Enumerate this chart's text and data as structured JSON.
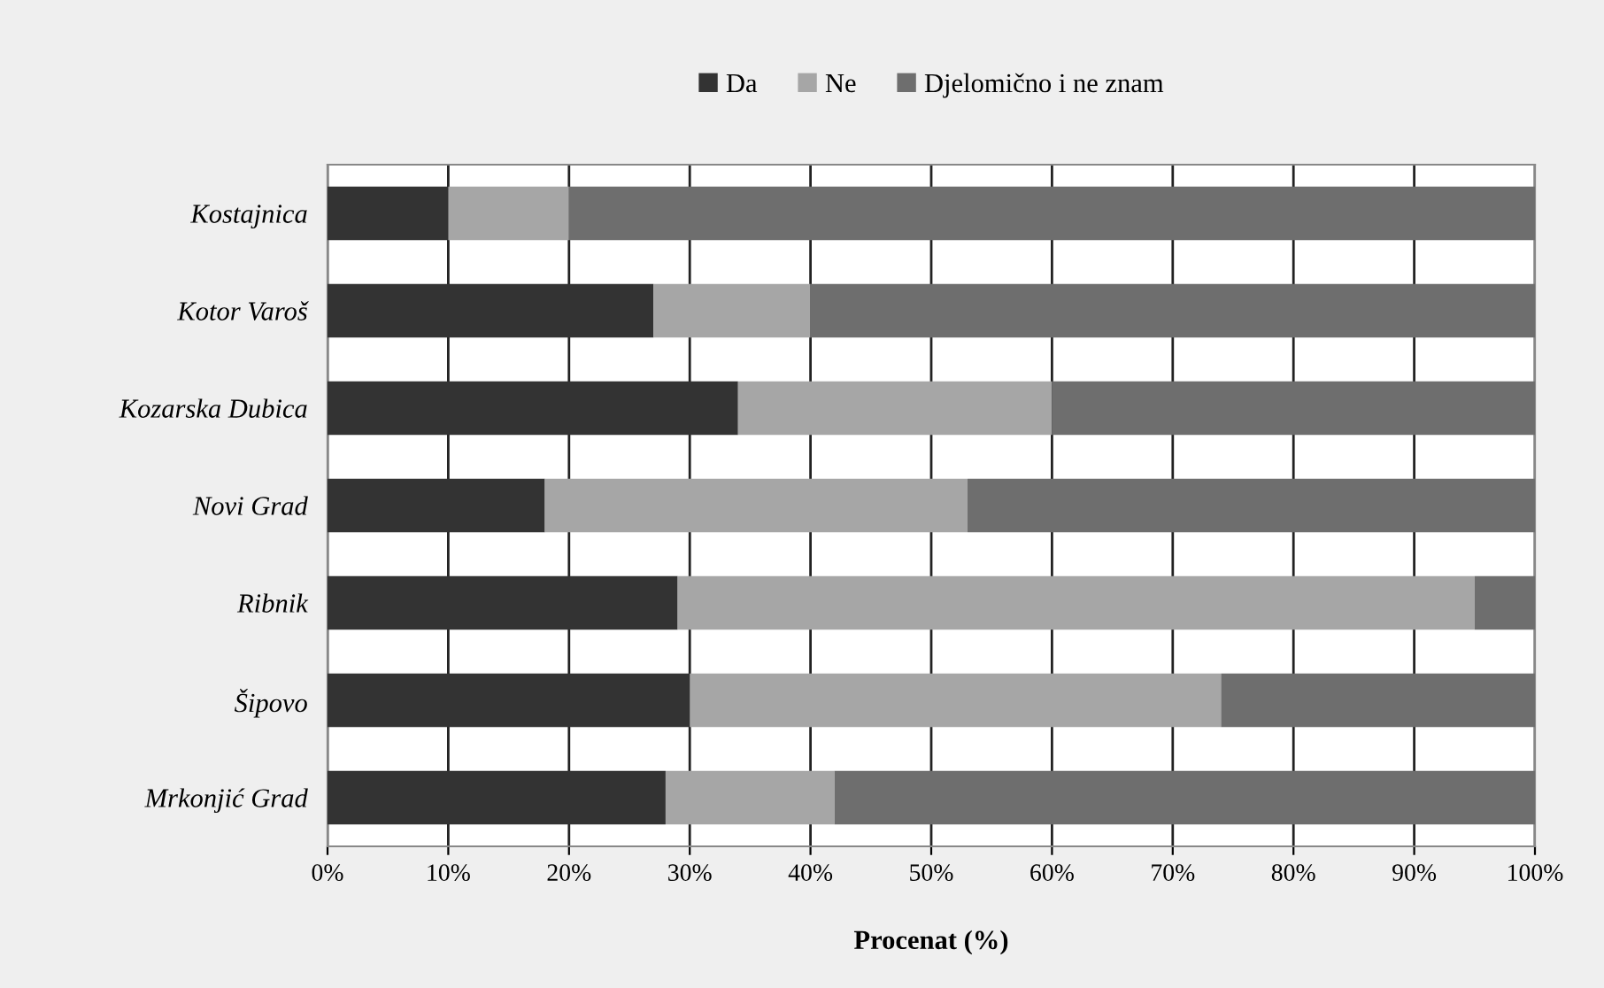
{
  "chart_data": {
    "type": "bar",
    "orientation": "horizontal",
    "stacked": true,
    "xlabel": "Procenat (%)",
    "categories": [
      "Kostajnica",
      "Kotor Varoš",
      "Kozarska Dubica",
      "Novi Grad",
      "Ribnik",
      "Šipovo",
      "Mrkonjić Grad"
    ],
    "series": [
      {
        "name": "Da",
        "color": "#333333",
        "values": [
          10,
          27,
          34,
          18,
          29,
          30,
          28
        ]
      },
      {
        "name": "Ne",
        "color": "#a6a6a6",
        "values": [
          10,
          13,
          26,
          35,
          66,
          44,
          14
        ]
      },
      {
        "name": "Djelomično i ne znam",
        "color": "#6e6e6e",
        "values": [
          80,
          60,
          40,
          47,
          5,
          26,
          58
        ]
      }
    ],
    "xlim": [
      0,
      100
    ],
    "xticks": [
      {
        "value": 0,
        "label": "0%"
      },
      {
        "value": 10,
        "label": "10%"
      },
      {
        "value": 20,
        "label": "20%"
      },
      {
        "value": 30,
        "label": "30%"
      },
      {
        "value": 40,
        "label": "40%"
      },
      {
        "value": 50,
        "label": "50%"
      },
      {
        "value": 60,
        "label": "60%"
      },
      {
        "value": 70,
        "label": "70%"
      },
      {
        "value": 80,
        "label": "80%"
      },
      {
        "value": 90,
        "label": "90%"
      },
      {
        "value": 100,
        "label": "100%"
      }
    ],
    "grid": "x",
    "legend": "top"
  }
}
